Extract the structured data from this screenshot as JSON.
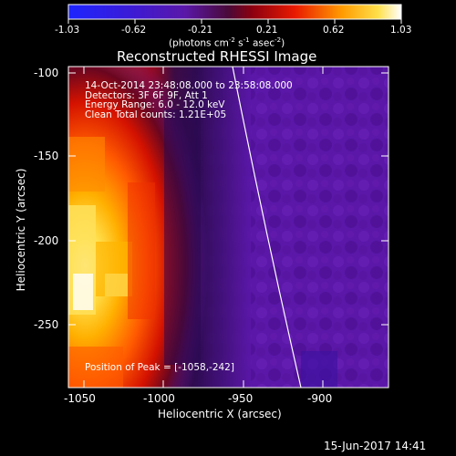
{
  "colorbar": {
    "tick_labels": [
      "-1.03",
      "-0.62",
      "-0.21",
      "0.21",
      "0.62",
      "1.03"
    ],
    "units_text": "(photons cm",
    "units_sup1": "-2",
    "units_mid": " s",
    "units_sup2": "-1",
    "units_mid2": " asec",
    "units_sup3": "-2",
    "units_end": ")"
  },
  "plot": {
    "title": "Reconstructed RHESSI Image",
    "info_lines": [
      "14-Oct-2014 23:48:08.000 to 23:58:08.000",
      "Detectors: 3F 6F 9F, Att 1",
      "Energy Range: 6.0 - 12.0 keV",
      "Clean    Total counts: 1.21E+05"
    ],
    "peak_text": "Position of Peak = [-1058,-242]",
    "xlabel": "Heliocentric X (arcsec)",
    "ylabel": "Heliocentric Y (arcsec)",
    "x_tick_labels": [
      "-1050",
      "-1000",
      "-950",
      "-900"
    ],
    "y_tick_labels": [
      "-100",
      "-150",
      "-200",
      "-250"
    ]
  },
  "footer": {
    "date": "15-Jun-2017 14:41"
  },
  "colors": {
    "background": "#000000",
    "plot_bg": "#5a17a8",
    "limb": "#ffffff"
  }
}
